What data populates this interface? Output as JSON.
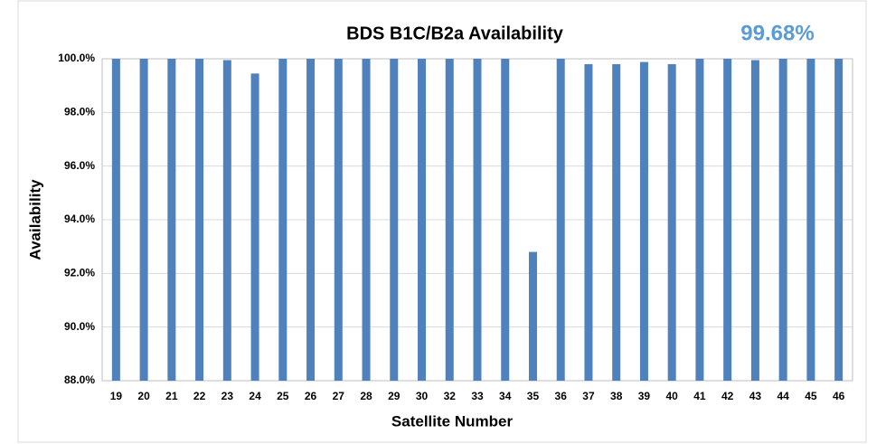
{
  "chart_data": {
    "type": "bar",
    "title": "BDS B1C/B2a Availability",
    "annotation": "99.68%",
    "x_label": "Satellite Number",
    "y_label": "Availability",
    "categories": [
      "19",
      "20",
      "21",
      "22",
      "23",
      "24",
      "25",
      "26",
      "27",
      "28",
      "29",
      "30",
      "32",
      "33",
      "34",
      "35",
      "36",
      "37",
      "38",
      "39",
      "40",
      "41",
      "42",
      "43",
      "44",
      "45",
      "46"
    ],
    "values": [
      100,
      100,
      100,
      100,
      99.95,
      99.45,
      100,
      100,
      100,
      100,
      100,
      100,
      100,
      100,
      100,
      92.8,
      100,
      99.8,
      99.8,
      99.88,
      99.8,
      100,
      100,
      99.95,
      100,
      100,
      100
    ],
    "color": "#4f81bd",
    "ylim": [
      88,
      100
    ],
    "yticks": [
      {
        "value": 88,
        "label": "88.0%"
      },
      {
        "value": 90,
        "label": "90.0%"
      },
      {
        "value": 92,
        "label": "92.0%"
      },
      {
        "value": 94,
        "label": "94.0%"
      },
      {
        "value": 96,
        "label": "96.0%"
      },
      {
        "value": 98,
        "label": "98.0%"
      },
      {
        "value": 100,
        "label": "100.0%"
      }
    ],
    "grid": true
  }
}
